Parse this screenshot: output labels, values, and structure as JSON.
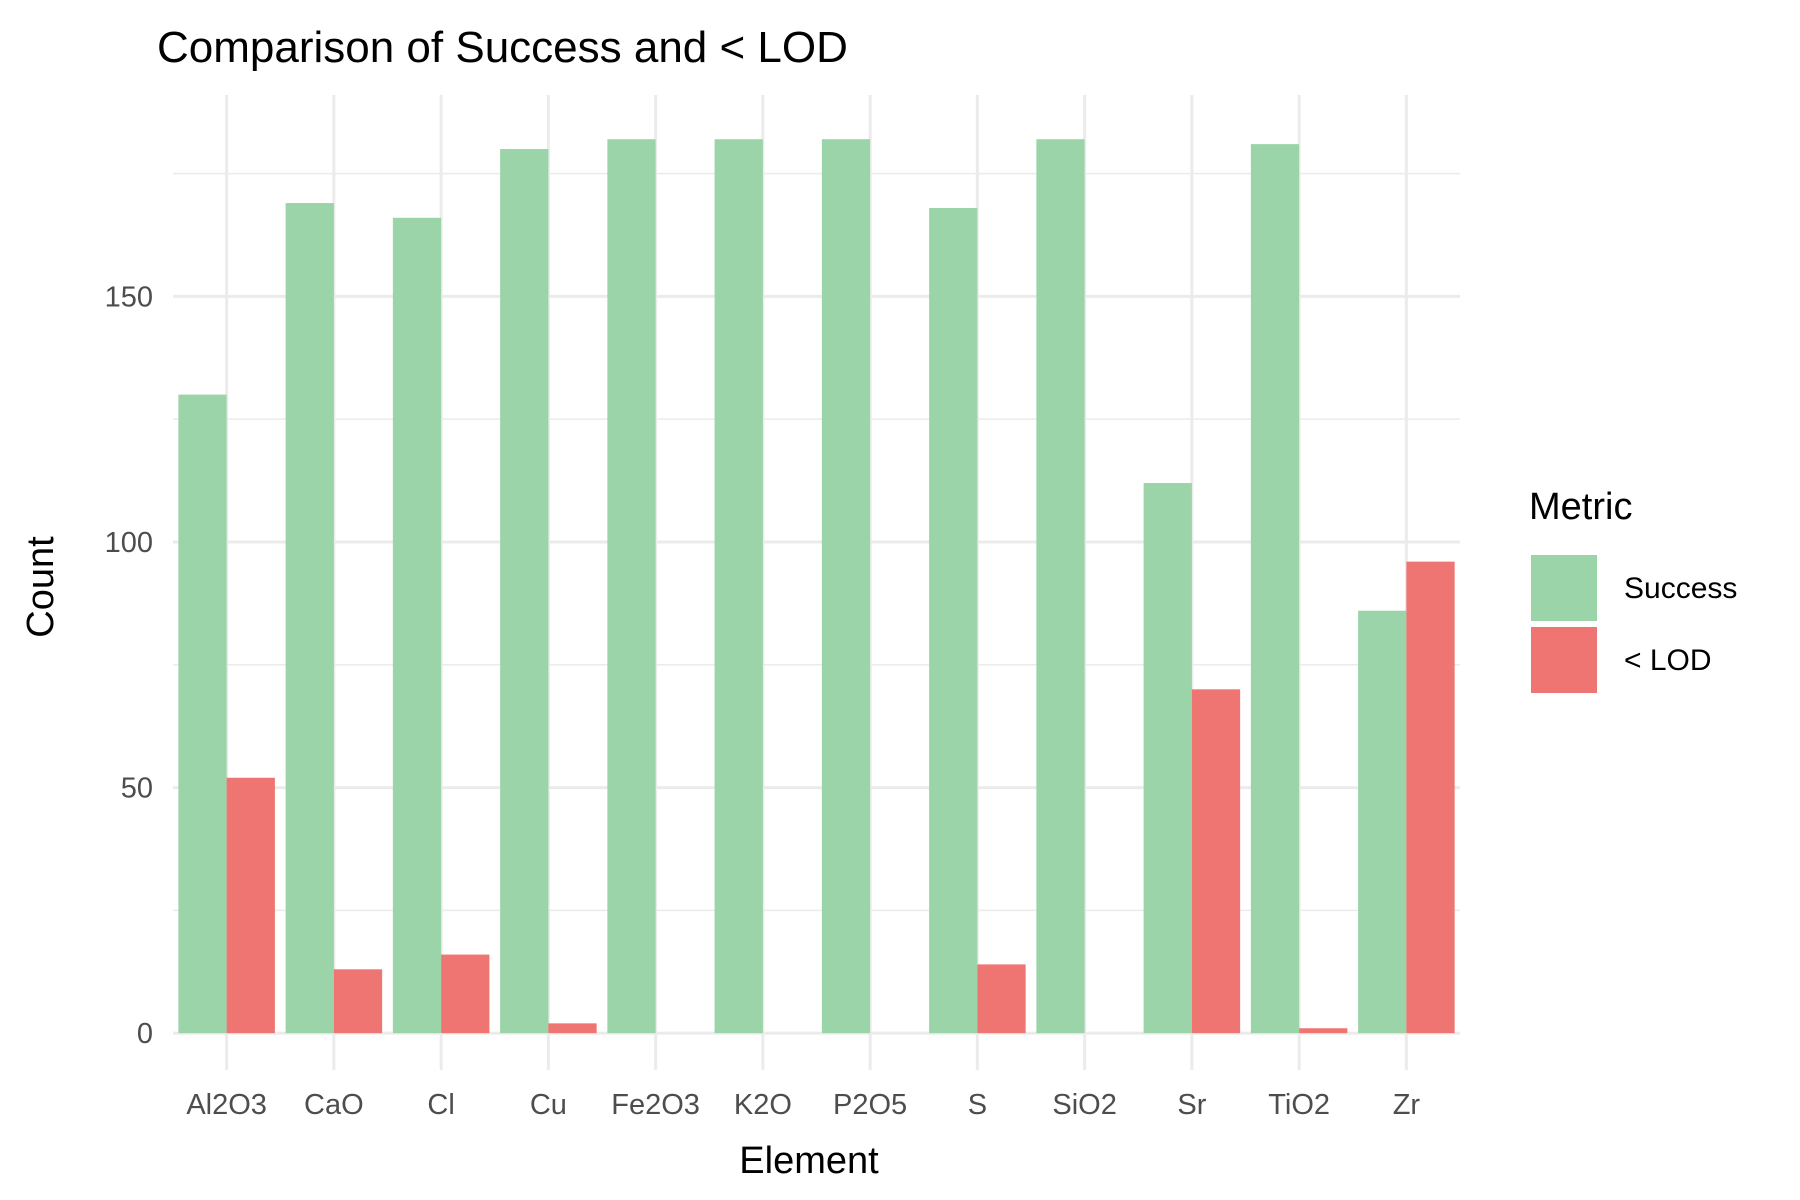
{
  "chart_data": {
    "type": "bar",
    "title": "Comparison of Success and < LOD",
    "xlabel": "Element",
    "ylabel": "Count",
    "categories": [
      "Al2O3",
      "CaO",
      "Cl",
      "Cu",
      "Fe2O3",
      "K2O",
      "P2O5",
      "S",
      "SiO2",
      "Sr",
      "TiO2",
      "Zr"
    ],
    "series": [
      {
        "name": "Success",
        "color": "#9bd4a8",
        "values": [
          130,
          169,
          166,
          180,
          182,
          182,
          182,
          168,
          182,
          112,
          181,
          86
        ]
      },
      {
        "name": "< LOD",
        "color": "#ee7572",
        "values": [
          52,
          13,
          16,
          2,
          0,
          0,
          0,
          14,
          0,
          70,
          1,
          96
        ]
      }
    ],
    "ylim": [
      -7.5,
      191
    ],
    "yticks": [
      0,
      50,
      100,
      150
    ],
    "grid": true,
    "legend": {
      "title": "Metric",
      "position": "right"
    }
  }
}
